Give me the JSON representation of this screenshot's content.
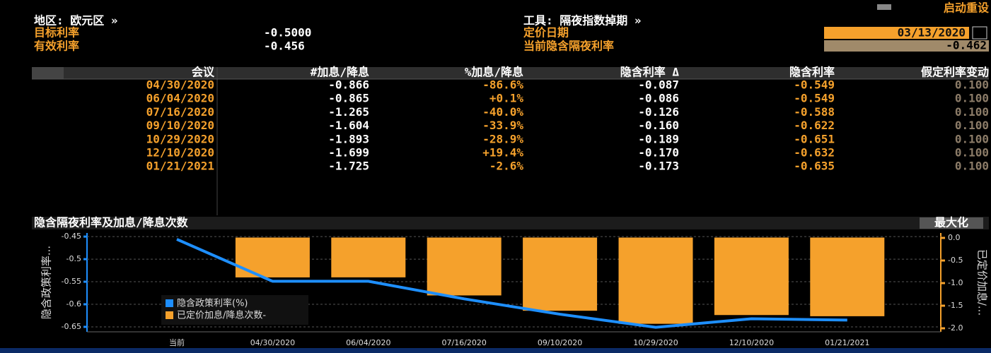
{
  "header": {
    "reset": "启动重设",
    "region": "地区: 欧元区 »",
    "instrument": "工具: 隔夜指数掉期 »",
    "fields": [
      {
        "label": "目标利率",
        "value": "-0.5000"
      },
      {
        "label": "有效利率",
        "value": "-0.456"
      },
      {
        "label": "定价日期",
        "value": "03/13/2020"
      },
      {
        "label": "当前隐含隔夜利率",
        "value": "-0.462"
      }
    ]
  },
  "table": {
    "columns": [
      "会议",
      "#加息/降息",
      "%加息/降息",
      "隐含利率 Δ",
      "隐含利率",
      "假定利率变动"
    ],
    "rows": [
      [
        "04/30/2020",
        "-0.866",
        "-86.6%",
        "-0.087",
        "-0.549",
        "0.100"
      ],
      [
        "06/04/2020",
        "-0.865",
        "+0.1%",
        "-0.086",
        "-0.549",
        "0.100"
      ],
      [
        "07/16/2020",
        "-1.265",
        "-40.0%",
        "-0.126",
        "-0.588",
        "0.100"
      ],
      [
        "09/10/2020",
        "-1.604",
        "-33.9%",
        "-0.160",
        "-0.622",
        "0.100"
      ],
      [
        "10/29/2020",
        "-1.893",
        "-28.9%",
        "-0.189",
        "-0.651",
        "0.100"
      ],
      [
        "12/10/2020",
        "-1.699",
        "+19.4%",
        "-0.170",
        "-0.632",
        "0.100"
      ],
      [
        "01/21/2021",
        "-1.725",
        "-2.6%",
        "-0.173",
        "-0.635",
        "0.100"
      ]
    ]
  },
  "chart_data": {
    "type": "combo",
    "title": "隐含隔夜利率及加息/降息次数",
    "maximize": "最大化",
    "categories": [
      "当前",
      "04/30/2020",
      "06/04/2020",
      "07/16/2020",
      "09/10/2020",
      "10/29/2020",
      "12/10/2020",
      "01/21/2021"
    ],
    "ylabel": "隐含政策利率...",
    "y2label": "已定价加息/...",
    "ylim": [
      -0.661,
      -0.442
    ],
    "yticks": [
      -0.45,
      -0.5,
      -0.55,
      -0.6,
      -0.65
    ],
    "y2lim": [
      -2.078,
      0.109
    ],
    "y2ticks": [
      {
        "value": 0,
        "label": "0.0"
      },
      {
        "value": -0.5,
        "label": "-0.5"
      },
      {
        "value": -1,
        "label": "-1.0"
      },
      {
        "value": -1.5,
        "label": "-1.5"
      },
      {
        "value": -2,
        "label": "-2.0"
      }
    ],
    "grid": true,
    "series": [
      {
        "name": "隐含政策利率(%)",
        "type": "line",
        "color": "#1e8fff",
        "values": [
          -0.456,
          -0.549,
          -0.549,
          -0.588,
          -0.622,
          -0.651,
          -0.632,
          -0.635
        ]
      },
      {
        "name": "已定价加息/降息次数-",
        "type": "bar",
        "axis": "y2",
        "color": "#f5a12c",
        "values": [
          0,
          -0.866,
          -0.865,
          -1.265,
          -1.604,
          -1.893,
          -1.699,
          -1.725
        ]
      }
    ]
  }
}
